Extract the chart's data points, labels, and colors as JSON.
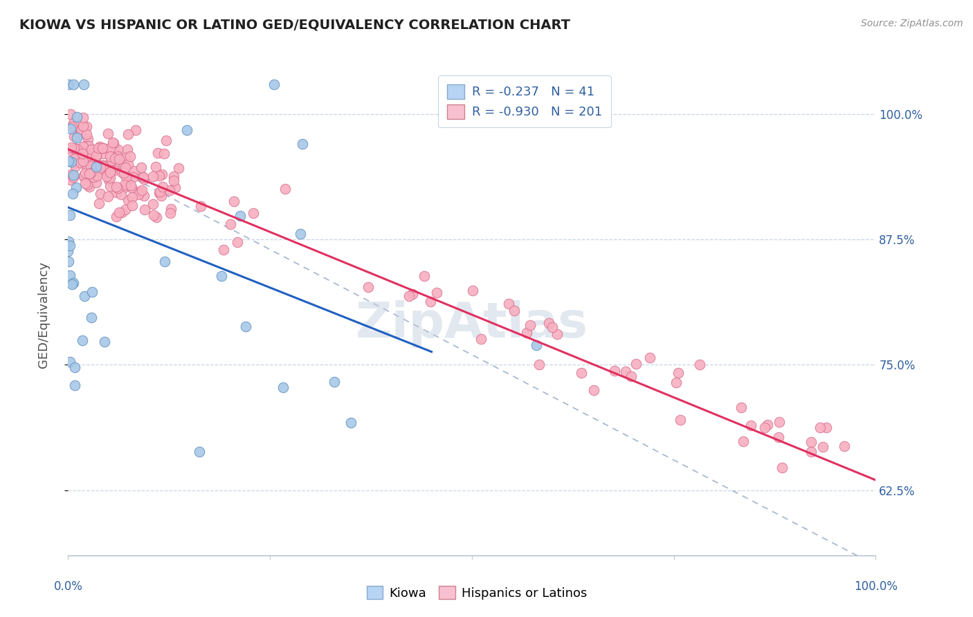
{
  "title": "KIOWA VS HISPANIC OR LATINO GED/EQUIVALENCY CORRELATION CHART",
  "source_text": "Source: ZipAtlas.com",
  "ylabel": "GED/Equivalency",
  "ytick_labels": [
    "62.5%",
    "75.0%",
    "87.5%",
    "100.0%"
  ],
  "ytick_values": [
    0.625,
    0.75,
    0.875,
    1.0
  ],
  "legend_r1_val": "-0.237",
  "legend_n1_val": "41",
  "legend_r2_val": "-0.930",
  "legend_n2_val": "201",
  "kiowa_color": "#a8c8e8",
  "kiowa_edge": "#6090c0",
  "hispanic_color": "#f8b0c0",
  "hispanic_edge": "#d87090",
  "blue_line_color": "#2060c0",
  "pink_line_color": "#e03060",
  "dashed_line_color": "#a8b8d0",
  "legend_box_kiowa": "#b8d4f4",
  "legend_box_hispanic": "#f8c0d0",
  "text_color": "#3060a0",
  "background_color": "#ffffff",
  "xmin": 0.0,
  "xmax": 1.0,
  "ymin": 0.56,
  "ymax": 1.04,
  "kiowa_seed": 7,
  "hispanic_seed": 42
}
